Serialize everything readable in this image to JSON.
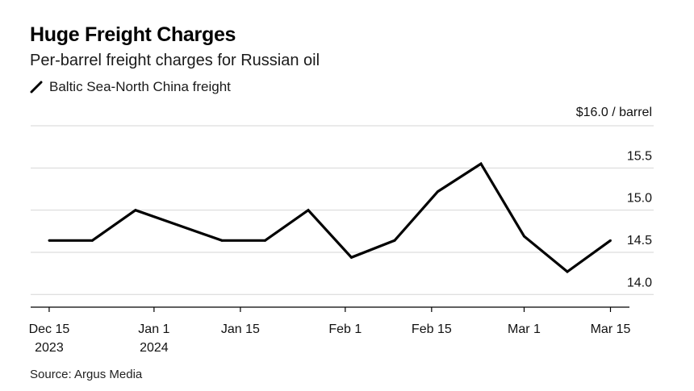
{
  "header": {
    "title": "Huge Freight Charges",
    "subtitle": "Per-barrel freight charges for Russian oil"
  },
  "source": "Source: Argus Media",
  "colors": {
    "line": "#000000",
    "grid": "#d6d6d6",
    "axis": "#000000"
  },
  "chart_data": {
    "type": "line",
    "title": "Huge Freight Charges",
    "subtitle": "Per-barrel freight charges for Russian oil",
    "series": [
      {
        "name": "Baltic Sea-North China freight",
        "x": [
          "2023-12-15",
          "2023-12-22",
          "2023-12-29",
          "2024-01-05",
          "2024-01-12",
          "2024-01-19",
          "2024-01-26",
          "2024-02-02",
          "2024-02-09",
          "2024-02-16",
          "2024-02-23",
          "2024-03-01",
          "2024-03-08",
          "2024-03-15"
        ],
        "values": [
          14.64,
          14.64,
          15.0,
          14.82,
          14.64,
          14.64,
          15.0,
          14.44,
          14.64,
          15.22,
          15.55,
          14.69,
          14.27,
          14.64
        ]
      }
    ],
    "xlabel": "",
    "ylabel": "",
    "x_ticks": [
      {
        "date": "2023-12-15",
        "label": "Dec 15",
        "sublabel": "2023"
      },
      {
        "date": "2024-01-01",
        "label": "Jan 1",
        "sublabel": "2024"
      },
      {
        "date": "2024-01-15",
        "label": "Jan 15",
        "sublabel": ""
      },
      {
        "date": "2024-02-01",
        "label": "Feb 1",
        "sublabel": ""
      },
      {
        "date": "2024-02-15",
        "label": "Feb 15",
        "sublabel": ""
      },
      {
        "date": "2024-03-01",
        "label": "Mar 1",
        "sublabel": ""
      },
      {
        "date": "2024-03-15",
        "label": "Mar 15",
        "sublabel": ""
      }
    ],
    "y_ticks": [
      {
        "value": 14.0,
        "label": "14.0"
      },
      {
        "value": 14.5,
        "label": "14.5"
      },
      {
        "value": 15.0,
        "label": "15.0"
      },
      {
        "value": 15.5,
        "label": "15.5"
      },
      {
        "value": 16.0,
        "label": "$16.0 / barrel"
      }
    ],
    "xlim": [
      "2023-12-12",
      "2024-03-22"
    ],
    "ylim": [
      13.85,
      16.0
    ],
    "grid": true,
    "legend_position": "top-left"
  }
}
